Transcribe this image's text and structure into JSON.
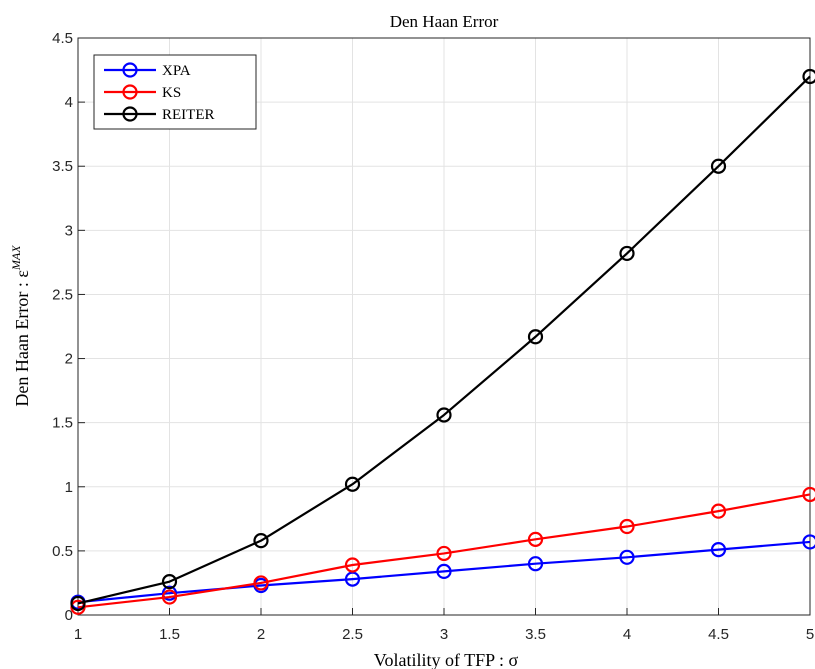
{
  "chart_data": {
    "type": "line",
    "title": "Den Haan Error",
    "xlabel": "Volatility of TFP : σ",
    "ylabel_main": "Den Haan Error : ε",
    "ylabel_sup": "MAX",
    "x": [
      1,
      1.5,
      2,
      2.5,
      3,
      3.5,
      4,
      4.5,
      5
    ],
    "xlim": [
      1,
      5
    ],
    "ylim": [
      0,
      4.5
    ],
    "x_ticks": [
      "1",
      "1.5",
      "2",
      "2.5",
      "3",
      "3.5",
      "4",
      "4.5",
      "5"
    ],
    "y_ticks": [
      "0",
      "0.5",
      "1",
      "1.5",
      "2",
      "2.5",
      "3",
      "3.5",
      "4",
      "4.5"
    ],
    "grid": true,
    "legend_position": "top-left",
    "series": [
      {
        "name": "XPA",
        "color": "#0000ff",
        "marker": "circle",
        "values": [
          0.1,
          0.17,
          0.23,
          0.28,
          0.34,
          0.4,
          0.45,
          0.51,
          0.57
        ]
      },
      {
        "name": "KS",
        "color": "#ff0000",
        "marker": "circle",
        "values": [
          0.06,
          0.14,
          0.25,
          0.39,
          0.48,
          0.59,
          0.69,
          0.81,
          0.94
        ]
      },
      {
        "name": "REITER",
        "color": "#000000",
        "marker": "circle",
        "values": [
          0.09,
          0.26,
          0.58,
          1.02,
          1.56,
          2.17,
          2.82,
          3.5,
          4.2
        ]
      }
    ]
  }
}
